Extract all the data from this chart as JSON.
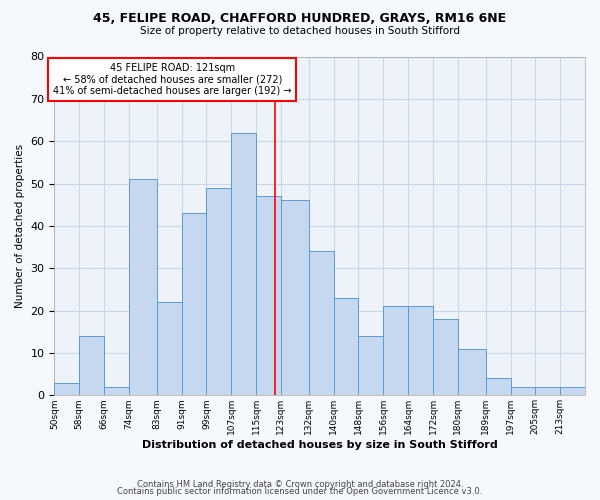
{
  "title_line1": "45, FELIPE ROAD, CHAFFORD HUNDRED, GRAYS, RM16 6NE",
  "title_line2": "Size of property relative to detached houses in South Stifford",
  "xlabel": "Distribution of detached houses by size in South Stifford",
  "ylabel": "Number of detached properties",
  "categories": [
    "50sqm",
    "58sqm",
    "66sqm",
    "74sqm",
    "83sqm",
    "91sqm",
    "99sqm",
    "107sqm",
    "115sqm",
    "123sqm",
    "132sqm",
    "140sqm",
    "148sqm",
    "156sqm",
    "164sqm",
    "172sqm",
    "180sqm",
    "189sqm",
    "197sqm",
    "205sqm",
    "213sqm"
  ],
  "values": [
    3,
    14,
    2,
    51,
    22,
    43,
    49,
    62,
    47,
    46,
    34,
    23,
    14,
    21,
    21,
    18,
    11,
    4,
    2,
    2,
    2
  ],
  "bar_color": "#c5d8f0",
  "bar_edge_color": "#5b9bd5",
  "property_line_x": 121,
  "property_line_color": "red",
  "annotation_text": "45 FELIPE ROAD: 121sqm\n← 58% of detached houses are smaller (272)\n41% of semi-detached houses are larger (192) →",
  "annotation_box_color": "white",
  "annotation_box_edge_color": "red",
  "ylim": [
    0,
    80
  ],
  "yticks": [
    0,
    10,
    20,
    30,
    40,
    50,
    60,
    70,
    80
  ],
  "grid_color": "#c8d8e8",
  "background_color": "#eef3f9",
  "fig_background_color": "#f5f8fd",
  "footer_line1": "Contains HM Land Registry data © Crown copyright and database right 2024.",
  "footer_line2": "Contains public sector information licensed under the Open Government Licence v3.0.",
  "bin_edges": [
    50,
    58,
    66,
    74,
    83,
    91,
    99,
    107,
    115,
    123,
    132,
    140,
    148,
    156,
    164,
    172,
    180,
    189,
    197,
    205,
    213,
    221
  ]
}
